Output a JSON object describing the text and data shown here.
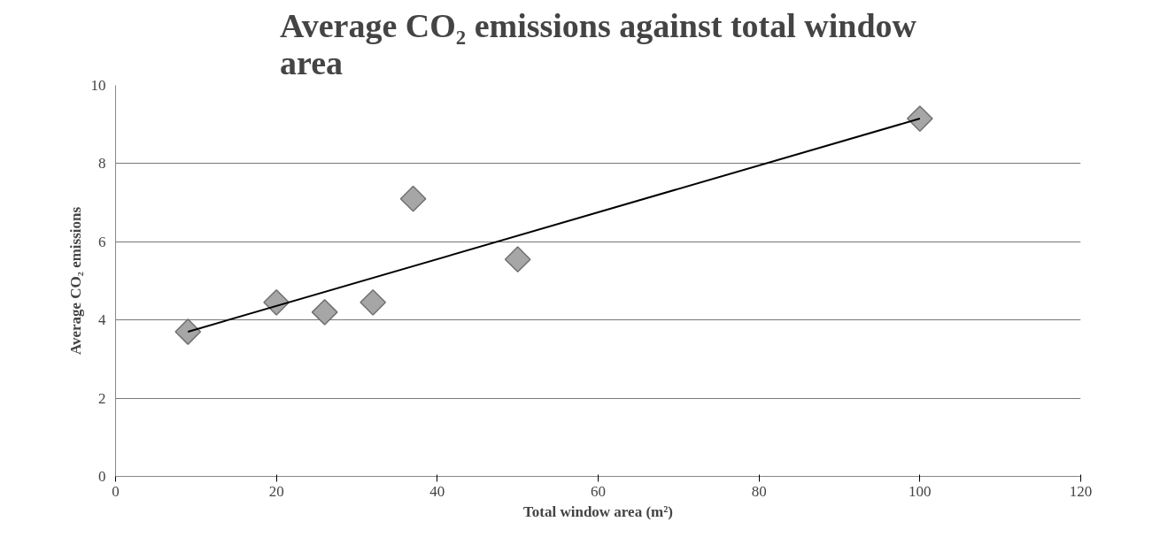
{
  "chart_data": {
    "type": "scatter",
    "title": "Average CO₂ emissions against total window\narea",
    "xlabel": "Total window area (m²)",
    "ylabel": "Average CO₂ emissions",
    "series": [
      {
        "color": "#a6a6a6",
        "marker": "diamond",
        "x": [
          9,
          20,
          26,
          32,
          37,
          50,
          100
        ],
        "values": [
          3.7,
          4.45,
          4.2,
          4.45,
          7.1,
          5.55,
          9.15
        ]
      },
      {
        "type": "line",
        "color": "#000000",
        "marker": "none",
        "x": [
          9,
          100
        ],
        "values": [
          3.7,
          9.15
        ]
      }
    ],
    "xlim": [
      0,
      120
    ],
    "xticks": [
      0,
      20,
      40,
      60,
      80,
      100,
      120
    ],
    "ylim": [
      0,
      10
    ],
    "yticks": [
      0,
      2,
      4,
      6,
      8,
      10
    ],
    "grid": "y"
  }
}
